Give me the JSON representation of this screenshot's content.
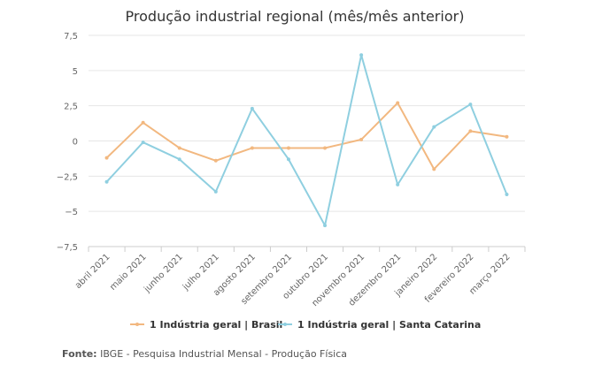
{
  "chart_data": {
    "type": "line",
    "title": "Produção industrial regional (mês/mês anterior)",
    "xlabel": "",
    "ylabel": "",
    "categories": [
      "abril 2021",
      "maio 2021",
      "junho 2021",
      "julho 2021",
      "agosto 2021",
      "setembro 2021",
      "outubro 2021",
      "novembro 2021",
      "dezembro 2021",
      "janeiro 2022",
      "fevereiro 2022",
      "março 2022"
    ],
    "ylim": [
      -7.5,
      7.5
    ],
    "yticks": [
      7.5,
      5,
      2.5,
      0,
      -2.5,
      -5,
      -7.5
    ],
    "ytick_labels": [
      "7,5",
      "5",
      "2,5",
      "0",
      "−2,5",
      "−5",
      "−7,5"
    ],
    "grid": true,
    "legend_position": "bottom",
    "series": [
      {
        "name": "1 Indústria geral | Brasil",
        "color": "#f2b880",
        "values": [
          -1.2,
          1.3,
          -0.5,
          -1.4,
          -0.5,
          -0.5,
          -0.5,
          0.1,
          2.7,
          -2.0,
          0.7,
          0.3
        ]
      },
      {
        "name": "1 Indústria geral | Santa Catarina",
        "color": "#8fcfe0",
        "values": [
          -2.9,
          -0.1,
          -1.3,
          -3.6,
          2.3,
          -1.3,
          -6.0,
          6.1,
          -3.1,
          1.0,
          2.6,
          -3.8
        ]
      }
    ]
  },
  "footer": {
    "source_label": "Fonte:",
    "source_text": "IBGE - Pesquisa Industrial Mensal - Produção Física"
  }
}
